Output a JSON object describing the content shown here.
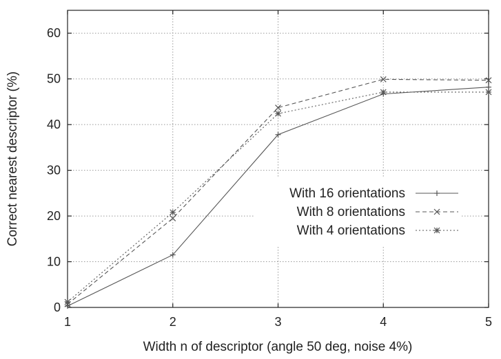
{
  "chart_data": {
    "type": "line",
    "xlabel": "Width n of descriptor (angle 50 deg, noise 4%)",
    "ylabel": "Correct nearest descriptor (%)",
    "xlim": [
      1,
      5
    ],
    "ylim": [
      0,
      65
    ],
    "xticks": [
      1,
      2,
      3,
      4,
      5
    ],
    "yticks": [
      0,
      10,
      20,
      30,
      40,
      50,
      60
    ],
    "grid": true,
    "legend_position": "center-right",
    "x": [
      1,
      2,
      3,
      4,
      5
    ],
    "series": [
      {
        "name": "With 16 orientations",
        "style": "solid",
        "marker": "plus",
        "color": "#555555",
        "values": [
          0.3,
          11.5,
          37.8,
          46.7,
          48.2
        ]
      },
      {
        "name": "With 8 orientations",
        "style": "dashed",
        "marker": "cross",
        "color": "#555555",
        "values": [
          0.7,
          19.5,
          43.7,
          49.9,
          49.7
        ]
      },
      {
        "name": "With 4 orientations",
        "style": "dotted",
        "marker": "asterisk",
        "color": "#555555",
        "values": [
          1.2,
          20.8,
          42.4,
          47.1,
          47.1
        ]
      }
    ]
  }
}
